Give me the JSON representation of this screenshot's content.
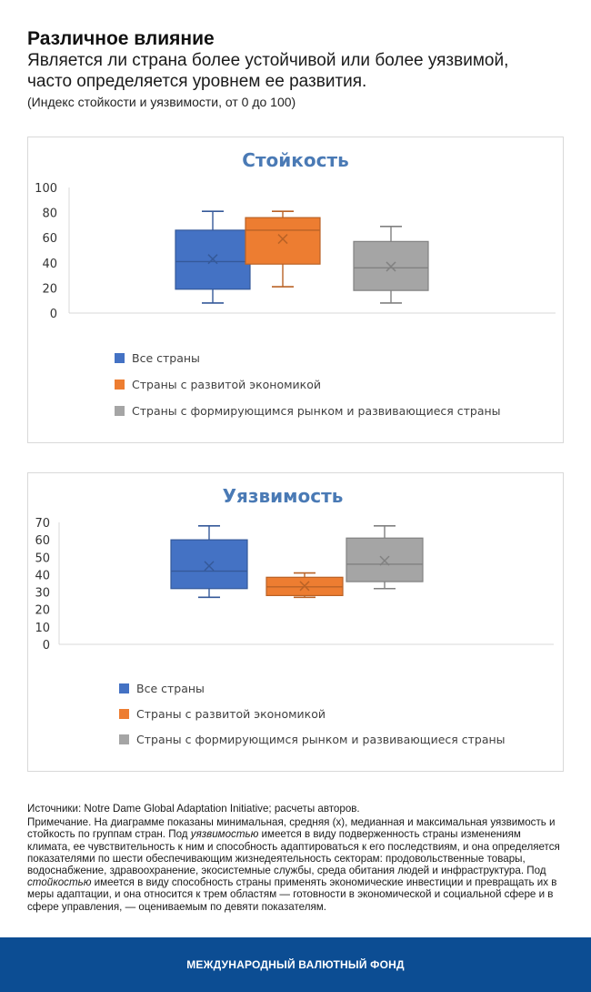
{
  "header": {
    "title": "Различное влияние",
    "subtitle_line1": "Является ли страна более устойчивой или более уязвимой,",
    "subtitle_line2": "часто определяется уровнем ее развития.",
    "unit": "(Индекс стойкости и уязвимости, от 0 до 100)"
  },
  "legend": [
    {
      "label": "Все страны",
      "color": "#4472c4"
    },
    {
      "label": "Страны с развитой экономикой",
      "color": "#ed7d31"
    },
    {
      "label": "Страны с формирующимся рынком и развивающиеся страны",
      "color": "#a5a5a5"
    }
  ],
  "chart_data": [
    {
      "type": "box",
      "title": "Стойкость",
      "xlabel": "",
      "ylabel": "",
      "ylim": [
        0,
        100
      ],
      "yticks": [
        "0",
        "20",
        "40",
        "60",
        "80",
        "100"
      ],
      "grid": false,
      "legend_position": "bottom",
      "series": [
        {
          "name": "Все страны",
          "color": "#4472c4",
          "min": 8,
          "q1": 19,
          "median": 41,
          "mean": 43,
          "q3": 66,
          "max": 81
        },
        {
          "name": "Страны с развитой экономикой",
          "color": "#ed7d31",
          "min": 21,
          "q1": 39,
          "median": 66,
          "mean": 59,
          "q3": 76,
          "max": 81
        },
        {
          "name": "Страны с формирующимся рынком и развивающиеся страны",
          "color": "#a5a5a5",
          "min": 8,
          "q1": 18,
          "median": 36,
          "mean": 37,
          "q3": 57,
          "max": 69
        }
      ]
    },
    {
      "type": "box",
      "title": "Уязвимость",
      "xlabel": "",
      "ylabel": "",
      "ylim": [
        0,
        70
      ],
      "yticks": [
        "0",
        "10",
        "20",
        "30",
        "40",
        "50",
        "60",
        "70"
      ],
      "grid": false,
      "legend_position": "bottom",
      "series": [
        {
          "name": "Все страны",
          "color": "#4472c4",
          "min": 27,
          "q1": 32,
          "median": 42,
          "mean": 45,
          "q3": 60,
          "max": 68
        },
        {
          "name": "Страны с развитой экономикой",
          "color": "#ed7d31",
          "min": 27,
          "q1": 28,
          "median": 33,
          "mean": 33.5,
          "q3": 38.5,
          "max": 41
        },
        {
          "name": "Страны с формирующимся рынком и развивающиеся страны",
          "color": "#a5a5a5",
          "min": 32,
          "q1": 36,
          "median": 46,
          "mean": 48,
          "q3": 61,
          "max": 68
        }
      ]
    }
  ],
  "notes": {
    "sources": "Источники: Notre Dame Global Adaptation Initiative; расчеты авторов.",
    "note_part1": "Примечание. На диаграмме показаны минимальная, средняя (x), медианная и максимальная уязвимость и стойкость по группам стран. Под ",
    "note_em1": "уязвимостью",
    "note_part2": " имеется в виду подверженность страны изменениям климата, ее чувствительность к ним и способность адаптироваться к его последствиям, и она определяется показателями по шести обеспечивающим жизнедеятельность секторам: продовольственные товары, водоснабжение, здравоохранение, экосистемные службы, среда обитания людей и инфраструктура. Под ",
    "note_em2": "стойкостью",
    "note_part3": " имеется в виду способность страны применять экономические инвестиции и превращать их в меры адаптации, и она относится к трем областям — готовности в экономической и социальной сфере и в сфере управления, — оцениваемым по девяти показателям."
  },
  "footer": {
    "label": "МЕЖДУНАРОДНЫЙ ВАЛЮТНЫЙ ФОНД",
    "background": "#0c4d93"
  }
}
